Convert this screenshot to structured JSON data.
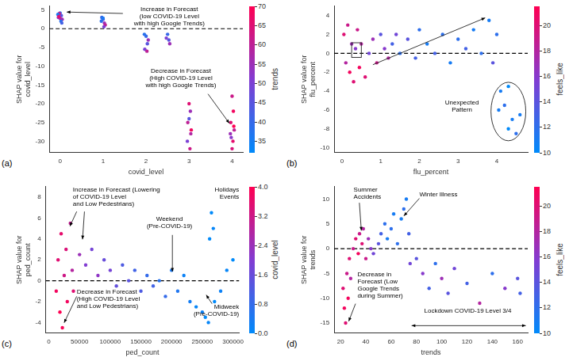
{
  "chart_data": [
    {
      "panel": "(a)",
      "type": "scatter",
      "marker": "circle",
      "grid": false,
      "x_label": "covid_level",
      "y_label": "SHAP value for\ncovid_level",
      "xlim": [
        -0.25,
        4.25
      ],
      "xticks": [
        0,
        1,
        2,
        3,
        4
      ],
      "ylim": [
        -33,
        6
      ],
      "yticks": [
        -30,
        -25,
        -20,
        -15,
        -10,
        -5,
        0,
        5
      ],
      "x": [
        0,
        0.03,
        -0.04,
        0.05,
        -0.02,
        0.02,
        -0.05,
        0.04,
        0,
        -0.03,
        1,
        1.03,
        0.97,
        1.05,
        0.96,
        1.02,
        1,
        2,
        2.03,
        1.97,
        2.05,
        1.96,
        2.02,
        2.5,
        2.53,
        2.47,
        2.55,
        3,
        3.03,
        2.97,
        3.05,
        2.96,
        3.02,
        3,
        3.04,
        4,
        4.03,
        3.97,
        4.05,
        3.96,
        4.02,
        4,
        4.04,
        3.98
      ],
      "values": [
        4.2,
        3.5,
        3.0,
        2.5,
        4.0,
        2.0,
        3.8,
        1.5,
        2.8,
        3.2,
        2.5,
        1.5,
        3.0,
        1.0,
        2.0,
        0.5,
        2.8,
        -2,
        -4,
        -5.5,
        -3,
        -1.5,
        -6,
        -1.5,
        -3,
        -2.5,
        -4,
        -20,
        -22,
        -25,
        -27,
        -30,
        -32,
        -24,
        -28,
        -18,
        -22,
        -25,
        -27,
        -28,
        -30,
        -32,
        -26,
        -29
      ],
      "color_values": [
        40,
        45,
        50,
        55,
        62,
        38,
        36,
        42,
        58,
        65,
        45,
        55,
        40,
        60,
        38,
        50,
        36,
        40,
        45,
        50,
        55,
        38,
        60,
        40,
        45,
        50,
        55,
        65,
        55,
        60,
        68,
        50,
        62,
        45,
        58,
        62,
        68,
        65,
        60,
        55,
        66,
        64,
        70,
        52
      ],
      "colorbar": {
        "label": "trends",
        "range": [
          32,
          70
        ],
        "ticks": [
          35,
          40,
          45,
          50,
          55,
          60,
          65,
          70
        ]
      },
      "annotations": [
        "Increase in Forecast\n(low COVID-19 Level\nwith high Google Trends)",
        "Decrease in Forecast\n(High COVID-19 Level\nwith high Google Trends)"
      ]
    },
    {
      "panel": "(b)",
      "type": "scatter",
      "marker": "circle",
      "grid": false,
      "x_label": "flu_percent",
      "y_label": "SHAP value for\nflu_percent",
      "xlim": [
        -0.2,
        4.8
      ],
      "xticks": [
        0,
        1,
        2,
        3,
        4
      ],
      "ylim": [
        -10.5,
        5
      ],
      "yticks": [
        -10,
        -8,
        -6,
        -4,
        -2,
        0,
        2,
        4
      ],
      "x": [
        0.05,
        0.1,
        0.15,
        0.2,
        0.25,
        0.3,
        0.35,
        0.4,
        0.45,
        0.5,
        0.6,
        0.7,
        0.8,
        0.9,
        1.0,
        1.1,
        1.2,
        1.3,
        1.4,
        1.5,
        1.7,
        1.9,
        2.0,
        2.2,
        2.4,
        2.6,
        2.8,
        3.0,
        3.2,
        3.4,
        3.6,
        3.8,
        3.9,
        4.0,
        4.1,
        4.2,
        4.3,
        4.4,
        4.5,
        4.6,
        4.3,
        4.05
      ],
      "values": [
        2,
        -1,
        3,
        -2,
        1,
        -3,
        0.5,
        2.5,
        -1.5,
        1,
        -2.5,
        0,
        1.5,
        -1,
        2,
        0.5,
        -0.5,
        1,
        2,
        0,
        1.5,
        -0.5,
        2.5,
        1,
        0,
        2,
        -1,
        1.5,
        0.5,
        2.5,
        0,
        3.5,
        -1,
        2,
        -4,
        -5.5,
        -3.5,
        -7,
        -8.5,
        -6.5,
        -8,
        -6
      ],
      "color_values": [
        20,
        18,
        19,
        21,
        17,
        20,
        16,
        19,
        21,
        18,
        20,
        15,
        17,
        19,
        14,
        16,
        18,
        13,
        15,
        12,
        14,
        13,
        12,
        11,
        13,
        12,
        11,
        12,
        13,
        11,
        12,
        11,
        14,
        12,
        11,
        12,
        10,
        11,
        12,
        11,
        10,
        11
      ],
      "colorbar": {
        "label": "feels_like",
        "range": [
          10,
          21.5
        ],
        "ticks": [
          10,
          12,
          14,
          16,
          18,
          20
        ]
      },
      "annotations": [
        "Unexpected\nPattern"
      ]
    },
    {
      "panel": "(c)",
      "type": "scatter",
      "marker": "circle",
      "grid": false,
      "x_label": "ped_count",
      "y_label": "SHAP value for\nped_count",
      "xlim": [
        -5000,
        310000
      ],
      "xticks": [
        0,
        50000,
        100000,
        150000,
        200000,
        250000,
        300000
      ],
      "ylim": [
        -5,
        9
      ],
      "yticks": [
        -4,
        -2,
        0,
        2,
        4,
        6,
        8
      ],
      "x": [
        12000,
        15000,
        18000,
        20000,
        22000,
        25000,
        28000,
        30000,
        35000,
        38000,
        40000,
        50000,
        60000,
        70000,
        80000,
        90000,
        100000,
        110000,
        120000,
        130000,
        140000,
        150000,
        160000,
        170000,
        180000,
        190000,
        200000,
        210000,
        220000,
        230000,
        240000,
        250000,
        255000,
        260000,
        265000,
        262000,
        268000,
        270000,
        280000,
        290000,
        300000
      ],
      "values": [
        -1,
        2,
        -3,
        4.5,
        -4.5,
        0.5,
        3,
        -2,
        5.5,
        1,
        -1,
        2.5,
        1.5,
        3,
        0.5,
        2,
        1,
        -0.5,
        1.5,
        0,
        1,
        -1,
        0.5,
        -0.5,
        0,
        -1.5,
        1,
        -1,
        0.5,
        -2,
        -2.5,
        -3,
        -3.5,
        -4,
        6.5,
        4,
        5,
        -2,
        -1,
        1,
        2
      ],
      "color_values": [
        3.8,
        3.5,
        4,
        3.6,
        3.9,
        3.2,
        3.4,
        3.8,
        3.0,
        2.8,
        3.5,
        2.4,
        2.0,
        1.8,
        2.2,
        1.6,
        1.8,
        1.5,
        1.2,
        1.4,
        1.0,
        1.2,
        0.8,
        1.0,
        0.6,
        0.8,
        0.4,
        0.5,
        0.2,
        0.3,
        0.1,
        0.2,
        0,
        0.1,
        0,
        0,
        0.1,
        0,
        0.2,
        0.1,
        0
      ],
      "colorbar": {
        "label": "covid_level",
        "range": [
          0,
          4
        ],
        "ticks": [
          {
            "value": 0,
            "label": "0.0"
          },
          {
            "value": 0.8,
            "label": "0.8"
          },
          {
            "value": 1.6,
            "label": "1.6"
          },
          {
            "value": 2.4,
            "label": "2.4"
          },
          {
            "value": 3.2,
            "label": "3.2"
          },
          {
            "value": 4,
            "label": "4.0"
          }
        ]
      },
      "annotations": [
        "Increase in Forecast (Lowering\nof COVID-19 Level\nand Low Pedestrians)",
        "Holidays\nEvents",
        "Weekend\n(Pre-COVID-19)",
        "Decrease in Forecast\n(High COVID-19 Level\nand Low Pedestrians)",
        "Midweek\n(Pre-COVID-19)"
      ]
    },
    {
      "panel": "(d)",
      "type": "scatter",
      "marker": "circle",
      "grid": false,
      "x_label": "trends",
      "y_label": "SHAP value for\ntrends",
      "xlim": [
        15,
        168
      ],
      "xticks": [
        20,
        40,
        60,
        80,
        100,
        120,
        140,
        160
      ],
      "ylim": [
        -17,
        12.5
      ],
      "yticks": [
        -15,
        -10,
        -5,
        0,
        5,
        10
      ],
      "x": [
        22,
        23,
        24,
        25,
        26,
        27,
        28,
        30,
        32,
        34,
        35,
        37,
        38,
        40,
        42,
        44,
        46,
        50,
        52,
        55,
        57,
        60,
        62,
        65,
        68,
        70,
        72,
        74,
        75,
        80,
        85,
        90,
        95,
        100,
        105,
        110,
        120,
        130,
        140,
        150,
        160,
        162
      ],
      "values": [
        -8,
        -12,
        -15,
        -5,
        -10,
        -2,
        -6,
        0,
        2,
        -1,
        3,
        1,
        4,
        -2,
        2,
        0,
        -1,
        1,
        3,
        5,
        2,
        4,
        7,
        1,
        6,
        8,
        10,
        3,
        -3,
        -2,
        -5,
        -8,
        -3,
        -6,
        -9,
        -4,
        -7,
        -11,
        -5,
        -8,
        -6,
        -9
      ],
      "color_values": [
        20,
        21,
        20,
        19,
        21,
        20,
        18,
        19,
        20,
        21,
        19,
        20,
        18,
        19,
        17,
        16,
        15,
        14,
        13,
        12,
        11,
        12,
        11,
        12,
        11,
        12,
        11,
        13,
        15,
        14,
        16,
        13,
        12,
        17,
        14,
        15,
        13,
        18,
        12,
        16,
        14,
        13
      ],
      "colorbar": {
        "label": "feels_like",
        "range": [
          10,
          21.5
        ],
        "ticks": [
          10,
          12,
          14,
          16,
          18,
          20
        ]
      },
      "annotations": [
        "Summer\nAccidents",
        "Winter Illness",
        "Decrease in\nForecast (Low\nGoogle Trends\nduring Summer)",
        "Lockdown COVID-19 Level 3/4"
      ]
    }
  ]
}
